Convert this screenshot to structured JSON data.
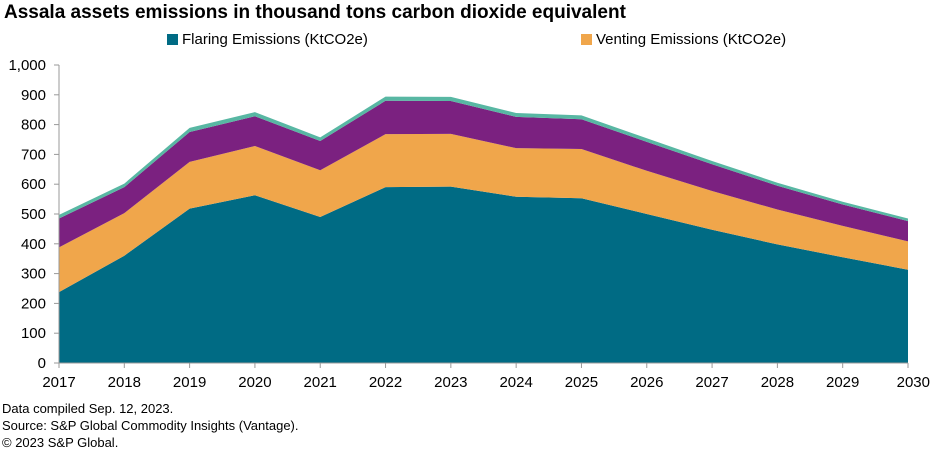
{
  "colors": {
    "flaring": "#006b84",
    "venting": "#f0a64b",
    "series3": "#7b2180",
    "series4": "#58b7a3",
    "axis": "#999999"
  },
  "chart_data": {
    "type": "area",
    "stacked": true,
    "title": "Assala assets emissions in thousand tons carbon dioxide equivalent",
    "xlabel": "",
    "ylabel": "",
    "ylim": [
      0,
      1000
    ],
    "yticks": [
      0,
      100,
      200,
      300,
      400,
      500,
      600,
      700,
      800,
      900,
      1000
    ],
    "ytick_labels": [
      "0",
      "100",
      "200",
      "300",
      "400",
      "500",
      "600",
      "700",
      "800",
      "900",
      "1,000"
    ],
    "x": [
      "2017",
      "2018",
      "2019",
      "2020",
      "2021",
      "2022",
      "2023",
      "2024",
      "2025",
      "2026",
      "2027",
      "2028",
      "2029",
      "2030"
    ],
    "grid": false,
    "legend_position": "top",
    "series": [
      {
        "name": "Flaring Emissions (KtCO2e)",
        "color_key": "flaring",
        "in_legend": true,
        "values": [
          238,
          360,
          518,
          563,
          490,
          590,
          592,
          558,
          553,
          500,
          447,
          398,
          355,
          313
        ]
      },
      {
        "name": "Venting Emissions (KtCO2e)",
        "color_key": "venting",
        "in_legend": true,
        "values": [
          150,
          143,
          157,
          165,
          157,
          178,
          177,
          163,
          165,
          145,
          130,
          117,
          105,
          95
        ]
      },
      {
        "name": "",
        "color_key": "series3",
        "in_legend": false,
        "values": [
          97,
          87,
          100,
          100,
          98,
          112,
          110,
          105,
          100,
          97,
          90,
          80,
          72,
          68
        ]
      },
      {
        "name": "",
        "color_key": "series4",
        "in_legend": false,
        "values": [
          12,
          12,
          14,
          14,
          12,
          14,
          14,
          13,
          13,
          12,
          11,
          10,
          9,
          9
        ]
      }
    ]
  },
  "footer": {
    "line1": "Data compiled Sep. 12, 2023.",
    "line2": "Source: S&P Global Commodity Insights (Vantage).",
    "line3": "© 2023 S&P Global."
  }
}
